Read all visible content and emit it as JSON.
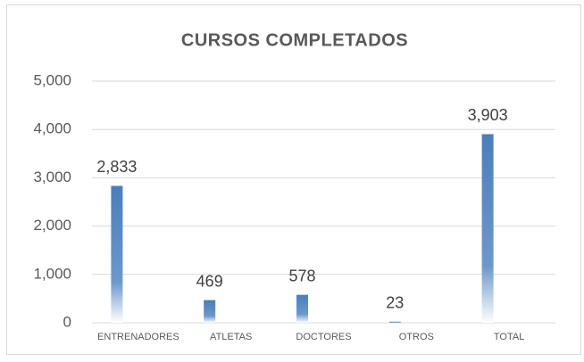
{
  "chart_data": {
    "type": "bar",
    "title": "CURSOS COMPLETADOS",
    "categories": [
      "ENTRENADORES",
      "ATLETAS",
      "DOCTORES",
      "OTROS",
      "TOTAL"
    ],
    "values": [
      2833,
      469,
      578,
      23,
      3903
    ],
    "value_labels": [
      "2,833",
      "469",
      "578",
      "23",
      "3,903"
    ],
    "color": "#4a7ebb",
    "ylim": [
      0,
      5000
    ],
    "yticks": [
      0,
      {
        "value": 1000,
        "label": "1,000"
      },
      {
        "value": 2000,
        "label": "2,000"
      },
      {
        "value": 3000,
        "label": "3,000"
      },
      {
        "value": 4000,
        "label": "4,000"
      },
      {
        "value": 5000,
        "label": "5,000"
      }
    ],
    "grid": true
  }
}
